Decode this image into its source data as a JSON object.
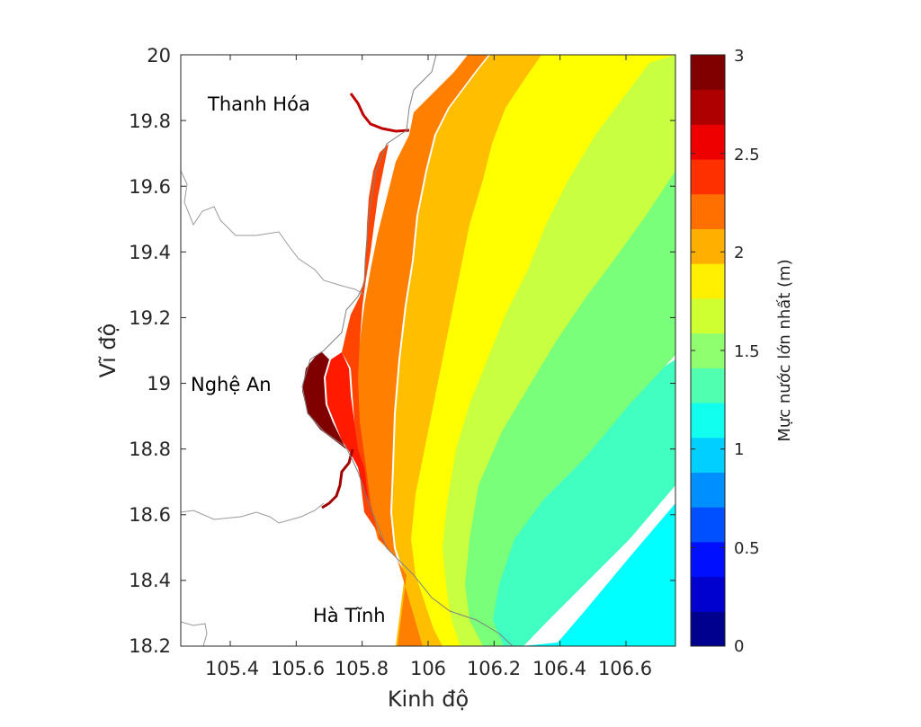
{
  "map": {
    "x_axis": {
      "label": "Kinh độ",
      "range": [
        105.25,
        106.75
      ],
      "ticks": [
        105.4,
        105.6,
        105.8,
        106,
        106.2,
        106.4,
        106.6
      ],
      "tick_labels": [
        "105.4",
        "105.6",
        "105.8",
        "106",
        "106.2",
        "106.4",
        "106.6"
      ]
    },
    "y_axis": {
      "label": "Vĩ độ",
      "range": [
        18.2,
        20
      ],
      "ticks": [
        18.2,
        18.4,
        18.6,
        18.8,
        19,
        19.2,
        19.4,
        19.6,
        19.8,
        20
      ],
      "tick_labels": [
        "18.2",
        "18.4",
        "18.6",
        "18.8",
        "19",
        "19.2",
        "19.4",
        "19.6",
        "19.8",
        "20"
      ]
    },
    "places": [
      {
        "name": "Thanh Hóa",
        "lon": 105.31,
        "lat": 19.85
      },
      {
        "name": "Nghệ An",
        "lon": 105.28,
        "lat": 18.99
      },
      {
        "name": "Hà Tĩnh",
        "lon": 105.82,
        "lat": 18.29
      }
    ]
  },
  "colorbar": {
    "label": "Mực nước lớn nhất (m)",
    "range": [
      0,
      3
    ],
    "ticks": [
      0,
      0.5,
      1,
      1.5,
      2,
      2.5,
      3
    ],
    "tick_labels": [
      "0",
      "0.5",
      "1",
      "1.5",
      "2",
      "2.5",
      "3"
    ],
    "levels": 15,
    "colors": [
      "#00008f",
      "#0000cf",
      "#0010ff",
      "#0050ff",
      "#008fff",
      "#00cfff",
      "#10ffef",
      "#50ffaf",
      "#8fff6f",
      "#cfff30",
      "#ffef00",
      "#ffaf00",
      "#ff7000",
      "#ff3000",
      "#ef0000",
      "#af0000",
      "#800000"
    ]
  },
  "chart_data": {
    "type": "heatmap",
    "title": "",
    "xlabel": "Kinh độ",
    "ylabel": "Vĩ độ",
    "xlim": [
      105.25,
      106.75
    ],
    "ylim": [
      18.2,
      20
    ],
    "variable": "Mực nước lớn nhất (m)",
    "value_range": [
      0,
      3
    ],
    "contour_bands": [
      {
        "range": [
          2.6,
          3.0
        ],
        "color": "#800000",
        "region": "coast near lat 18.85–19.1"
      },
      {
        "range": [
          2.4,
          2.6
        ],
        "color": "#ff1a00",
        "region": "coast lat 18.7–19.1"
      },
      {
        "range": [
          2.2,
          2.4
        ],
        "color": "#ff4500",
        "region": "coastal strip lat 18.5–19.3"
      },
      {
        "range": [
          2.0,
          2.2
        ],
        "color": "#ff8000",
        "region": "coastal strip lat 18.5–20"
      },
      {
        "range": [
          1.8,
          2.0
        ],
        "color": "#ffbf00",
        "region": "strip lat 18.5–20"
      },
      {
        "range": [
          1.6,
          1.8
        ],
        "color": "#ffff00",
        "region": "lon ~105.95–106.4"
      },
      {
        "range": [
          1.4,
          1.6
        ],
        "color": "#c8ff40",
        "region": "lon ~106.15–106.75"
      },
      {
        "range": [
          1.2,
          1.4
        ],
        "color": "#7aff7a",
        "region": "south-east"
      },
      {
        "range": [
          1.0,
          1.2
        ],
        "color": "#40ffc0",
        "region": "south-east"
      },
      {
        "range": [
          0.8,
          1.0
        ],
        "color": "#00ffff",
        "region": "far south-east corner"
      }
    ]
  }
}
